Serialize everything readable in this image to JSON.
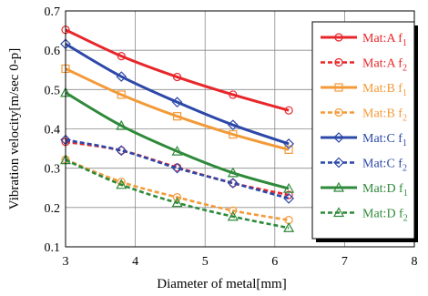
{
  "chart_data": {
    "type": "line",
    "xlabel": "Diameter of metal[mm]",
    "ylabel": "Vibration velocity[m/sec 0-p]",
    "xlim": [
      3,
      8
    ],
    "ylim": [
      0.1,
      0.7
    ],
    "xticks": [
      "3",
      "4",
      "5",
      "6",
      "7",
      "8"
    ],
    "yticks": [
      "0.1",
      "0.2",
      "0.3",
      "0.4",
      "0.5",
      "0.6",
      "0.7"
    ],
    "grid": true,
    "legend_position": "right",
    "series": [
      {
        "name": "Mat:A f",
        "sub": "1",
        "color": "#e8262a",
        "style": "solid",
        "marker": "circle",
        "x": [
          3,
          3.8,
          4.6,
          5.4,
          6.2
        ],
        "y": [
          0.652,
          0.585,
          0.532,
          0.487,
          0.447
        ]
      },
      {
        "name": "Mat:A f",
        "sub": "2",
        "color": "#e8262a",
        "style": "dashed",
        "marker": "circle",
        "x": [
          3,
          3.8,
          4.6,
          5.4,
          6.2
        ],
        "y": [
          0.367,
          0.345,
          0.302,
          0.262,
          0.232
        ]
      },
      {
        "name": "Mat:B f",
        "sub": "1",
        "color": "#f39a38",
        "style": "solid",
        "marker": "square",
        "x": [
          3,
          3.8,
          4.6,
          5.4,
          6.2
        ],
        "y": [
          0.553,
          0.487,
          0.432,
          0.386,
          0.347
        ]
      },
      {
        "name": "Mat:B f",
        "sub": "2",
        "color": "#f39a38",
        "style": "dashed",
        "marker": "circle",
        "x": [
          3,
          3.8,
          4.6,
          5.4,
          6.2
        ],
        "y": [
          0.322,
          0.265,
          0.226,
          0.192,
          0.168
        ]
      },
      {
        "name": "Mat:C f",
        "sub": "1",
        "color": "#2c48a8",
        "style": "solid",
        "marker": "diamond",
        "x": [
          3,
          3.8,
          4.6,
          5.4,
          6.2
        ],
        "y": [
          0.616,
          0.533,
          0.468,
          0.41,
          0.362
        ]
      },
      {
        "name": "Mat:C f",
        "sub": "2",
        "color": "#2c48a8",
        "style": "dashed",
        "marker": "diamond",
        "x": [
          3,
          3.8,
          4.6,
          5.4,
          6.2
        ],
        "y": [
          0.372,
          0.345,
          0.3,
          0.262,
          0.223
        ]
      },
      {
        "name": "Mat:D f",
        "sub": "1",
        "color": "#2e8a3a",
        "style": "solid",
        "marker": "triangle",
        "x": [
          3,
          3.8,
          4.6,
          5.4,
          6.2
        ],
        "y": [
          0.492,
          0.408,
          0.343,
          0.288,
          0.248
        ]
      },
      {
        "name": "Mat:D f",
        "sub": "2",
        "color": "#2e8a3a",
        "style": "dashed",
        "marker": "triangle",
        "x": [
          3,
          3.8,
          4.6,
          5.4,
          6.2
        ],
        "y": [
          0.321,
          0.258,
          0.212,
          0.177,
          0.148
        ]
      }
    ]
  }
}
